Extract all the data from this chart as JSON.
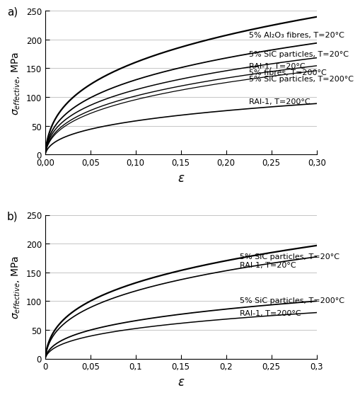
{
  "subplot_a_label": "a)",
  "subplot_b_label": "b)",
  "xlabel": "ε",
  "xlim_a": [
    0,
    0.3
  ],
  "xlim_b": [
    0,
    0.3
  ],
  "ylim": [
    0,
    250
  ],
  "xticks_a": [
    0.0,
    0.05,
    0.1,
    0.15,
    0.2,
    0.25,
    0.3
  ],
  "xtick_labels_a": [
    "0,00",
    "0,05",
    "0,10",
    "0,15",
    "0,20",
    "0,25",
    "0,30"
  ],
  "xticks_b": [
    0.0,
    0.05,
    0.1,
    0.15,
    0.2,
    0.25,
    0.3
  ],
  "xtick_labels_b": [
    "0",
    "0,05",
    "0,1",
    "0,15",
    "0,2",
    "0,25",
    "0,3"
  ],
  "yticks": [
    0,
    50,
    100,
    150,
    200,
    250
  ],
  "curves_a": [
    {
      "label": "5% Al₂O₃ fibres, T=20°C",
      "K": 420,
      "n": 0.28,
      "eps_max": 0.3,
      "color": "#000000",
      "lw": 1.6
    },
    {
      "label": "5% SiC particles, T=20°C",
      "K": 340,
      "n": 0.28,
      "eps_max": 0.3,
      "color": "#000000",
      "lw": 1.3
    },
    {
      "label": "RAI-1, T=20°C",
      "K": 295,
      "n": 0.28,
      "eps_max": 0.3,
      "color": "#000000",
      "lw": 1.1
    },
    {
      "label": "5% fibres, T=200°C",
      "K": 270,
      "n": 0.3,
      "eps_max": 0.3,
      "color": "#000000",
      "lw": 1.0
    },
    {
      "label": "5% SiC particles, T=200°C",
      "K": 255,
      "n": 0.31,
      "eps_max": 0.3,
      "color": "#000000",
      "lw": 0.9
    },
    {
      "label": "RAI-1, T=200°C",
      "K": 155,
      "n": 0.3,
      "eps_max": 0.3,
      "color": "#000000",
      "lw": 1.2
    }
  ],
  "curves_b": [
    {
      "label": "5% SiC particles, T=20°C",
      "K": 345,
      "n": 0.28,
      "eps_max": 0.3,
      "color": "#000000",
      "lw": 1.6
    },
    {
      "label": "RAI-1, T=20°C",
      "K": 310,
      "n": 0.29,
      "eps_max": 0.3,
      "color": "#000000",
      "lw": 1.2
    },
    {
      "label": "5% SiC particles, T=200°C",
      "K": 175,
      "n": 0.3,
      "eps_max": 0.3,
      "color": "#000000",
      "lw": 1.3
    },
    {
      "label": "RAI-1, T=200°C",
      "K": 140,
      "n": 0.31,
      "eps_max": 0.3,
      "color": "#000000",
      "lw": 1.1
    }
  ],
  "annotation_positions_a": [
    [
      0.225,
      208
    ],
    [
      0.225,
      175
    ],
    [
      0.225,
      154
    ],
    [
      0.225,
      143
    ],
    [
      0.225,
      132
    ],
    [
      0.225,
      93
    ]
  ],
  "annotation_positions_b": [
    [
      0.215,
      178
    ],
    [
      0.215,
      163
    ],
    [
      0.215,
      101
    ],
    [
      0.215,
      80
    ]
  ],
  "bg_color": "#ffffff",
  "grid_color": "#bbbbbb",
  "tick_fontsize": 8.5,
  "label_fontsize": 10,
  "annot_fontsize": 8
}
